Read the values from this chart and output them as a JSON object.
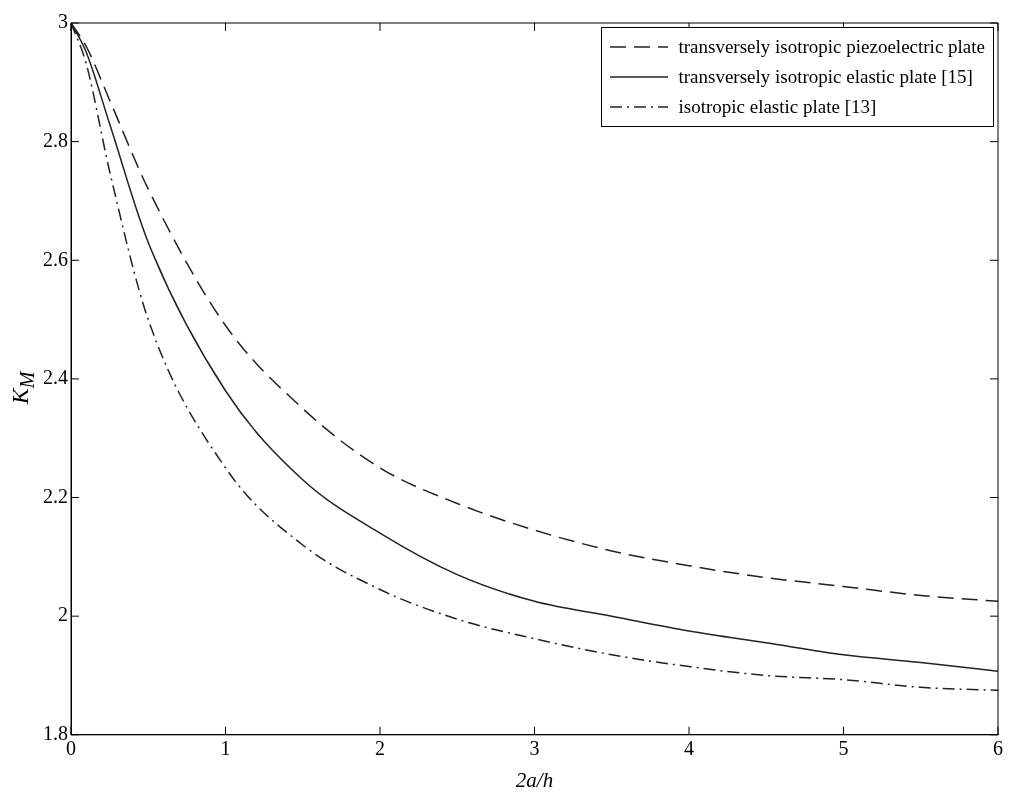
{
  "chart_data": {
    "type": "line",
    "xlabel": "2a/h",
    "ylabel": "K$_{M}$",
    "xlim": [
      0,
      6
    ],
    "ylim": [
      1.8,
      3
    ],
    "xticks": [
      0,
      1,
      2,
      3,
      4,
      5,
      6
    ],
    "yticks": [
      1.8,
      2,
      2.2,
      2.4,
      2.6,
      2.8,
      3
    ],
    "grid": false,
    "legend": "top right",
    "marker": "none",
    "series": [
      {
        "name": "transversely isotropic piezoelectric plate",
        "color": "#222222",
        "line_style": "dashed",
        "x": [
          0,
          0.1,
          0.25,
          0.5,
          1,
          1.5,
          2,
          2.5,
          3,
          3.5,
          4,
          4.5,
          5,
          5.5,
          6
        ],
        "values": [
          3.0,
          2.96,
          2.87,
          2.72,
          2.49,
          2.35,
          2.25,
          2.19,
          2.145,
          2.11,
          2.085,
          2.065,
          2.05,
          2.035,
          2.025
        ]
      },
      {
        "name": "transversely isotropic elastic plate [15]",
        "color": "#222222",
        "line_style": "solid",
        "x": [
          0,
          0.1,
          0.25,
          0.5,
          1,
          1.5,
          2,
          2.5,
          3,
          3.5,
          4,
          4.5,
          5,
          5.5,
          6
        ],
        "values": [
          3.0,
          2.95,
          2.83,
          2.63,
          2.38,
          2.23,
          2.14,
          2.07,
          2.025,
          2.0,
          1.975,
          1.955,
          1.935,
          1.922,
          1.907
        ]
      },
      {
        "name": "isotropic elastic plate [13]",
        "color": "#222222",
        "line_style": "dashdot",
        "x": [
          0,
          0.1,
          0.25,
          0.5,
          1,
          1.5,
          2,
          2.5,
          3,
          3.5,
          4,
          4.5,
          5,
          5.5,
          6
        ],
        "values": [
          3.0,
          2.93,
          2.75,
          2.5,
          2.25,
          2.12,
          2.045,
          1.995,
          1.962,
          1.935,
          1.915,
          1.9,
          1.893,
          1.88,
          1.875
        ]
      }
    ]
  }
}
